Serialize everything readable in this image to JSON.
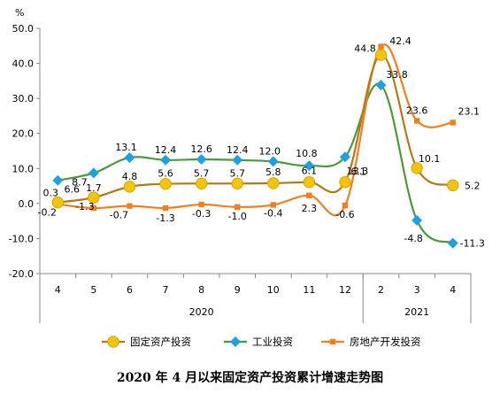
{
  "caption": "2020 年 4 月以来固定资产投资累计增速走势图",
  "chart_data": {
    "type": "line",
    "unit": "%",
    "categories": [
      "4",
      "5",
      "6",
      "7",
      "8",
      "9",
      "10",
      "11",
      "12",
      "2",
      "3",
      "4"
    ],
    "year_groups": [
      {
        "label": "2020",
        "from": 0,
        "to": 8
      },
      {
        "label": "2021",
        "from": 9,
        "to": 11
      }
    ],
    "ylim": [
      -20,
      50
    ],
    "yticks": [
      "50.0",
      "40.0",
      "30.0",
      "20.0",
      "10.0",
      "0.0",
      "-10.0",
      "-20.0"
    ],
    "ytick_values": [
      50,
      40,
      30,
      20,
      10,
      0,
      -10,
      -20
    ],
    "grid": false,
    "legend_position": "bottom",
    "series": [
      {
        "name": "固定资产投资",
        "values": [
          0.3,
          1.7,
          4.8,
          5.6,
          5.7,
          5.7,
          5.8,
          6.1,
          6.1,
          42.4,
          10.1,
          5.2
        ],
        "labels": [
          "0.3",
          "1.7",
          "4.8",
          "5.6",
          "5.7",
          "5.7",
          "5.8",
          "6.1",
          "6.1",
          "42.4",
          "10.1",
          "5.2"
        ],
        "color": "#b07a1a",
        "marker_color": "#f4c400",
        "marker": "circle"
      },
      {
        "name": "工业投资",
        "values": [
          6.6,
          8.7,
          13.1,
          12.4,
          12.6,
          12.4,
          12.0,
          10.8,
          13.3,
          33.8,
          -4.8,
          -11.3
        ],
        "labels": [
          "6.6",
          "8.7",
          "13.1",
          "12.4",
          "12.6",
          "12.4",
          "12.0",
          "10.8",
          "13.3",
          "33.8",
          "-4.8",
          "-11.3"
        ],
        "color": "#4a9a3a",
        "marker_color": "#1fa0e0",
        "marker": "diamond"
      },
      {
        "name": "房地产开发投资",
        "values": [
          -0.2,
          -1.3,
          -0.7,
          -1.3,
          -0.3,
          -1.0,
          -0.4,
          2.3,
          -0.6,
          44.8,
          23.6,
          23.1
        ],
        "labels": [
          "-0.2",
          "-1.3",
          "-0.7",
          "-1.3",
          "-0.3",
          "-1.0",
          "-0.4",
          "2.3",
          "-0.6",
          "44.8",
          "23.6",
          "23.1"
        ],
        "color": "#f07f22",
        "marker_color": "#f07f22",
        "marker": "square"
      }
    ]
  }
}
